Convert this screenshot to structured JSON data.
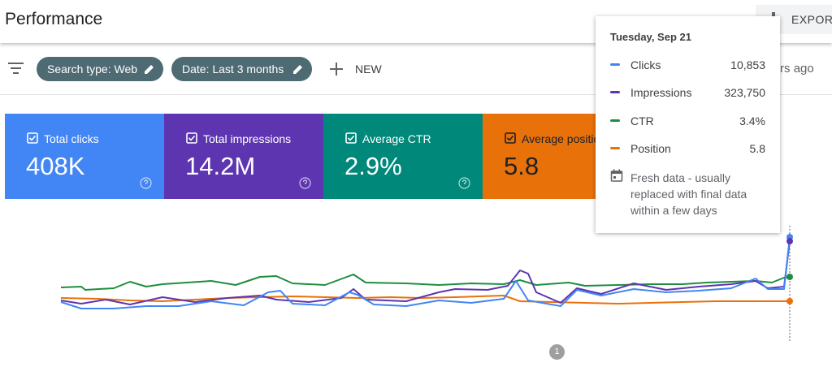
{
  "header": {
    "title": "Performance",
    "export": "EXPORT"
  },
  "toolbar": {
    "chips": [
      "Search type: Web",
      "Date: Last 3 months"
    ],
    "new": "NEW",
    "updated": "hours ago"
  },
  "metrics": [
    {
      "label": "Total clicks",
      "value": "408K"
    },
    {
      "label": "Total impressions",
      "value": "14.2M"
    },
    {
      "label": "Average CTR",
      "value": "2.9%"
    },
    {
      "label": "Average position",
      "value": "5.8"
    }
  ],
  "tooltip": {
    "date": "Tuesday, Sep 21",
    "rows": [
      {
        "name": "Clicks",
        "value": "10,853"
      },
      {
        "name": "Impressions",
        "value": "323,750"
      },
      {
        "name": "CTR",
        "value": "3.4%"
      },
      {
        "name": "Position",
        "value": "5.8"
      }
    ],
    "note": "Fresh data - usually replaced with final data within a few days"
  },
  "pagination": {
    "current": "1"
  }
}
